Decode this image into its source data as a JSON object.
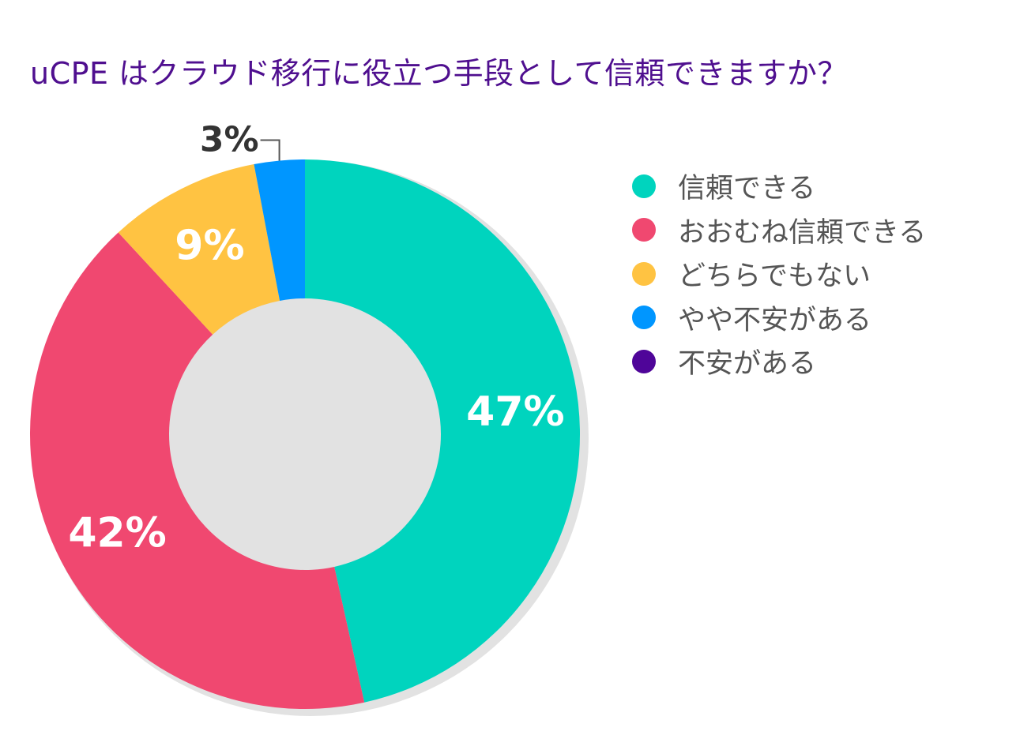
{
  "chart_data": {
    "type": "pie",
    "title": "uCPE はクラウド移行に役立つ手段として信頼できますか？",
    "categories": [
      "信頼できる",
      "おおむね信頼できる",
      "どちらでもない",
      "やや不安がある",
      "不安がある"
    ],
    "values": [
      47,
      42,
      9,
      3,
      0
    ],
    "data_labels": [
      "47%",
      "42%",
      "9%",
      "3%",
      ""
    ],
    "colors": [
      "#00d4be",
      "#f04870",
      "#ffc342",
      "#0096ff",
      "#4f0599"
    ],
    "legend_position": "right",
    "donut": true
  },
  "colors": {
    "title": "#4f0f8f",
    "legend_text": "#555555",
    "outer_label": "#333333",
    "inner_label": "#ffffff",
    "shadow": "#e2e2e2"
  }
}
